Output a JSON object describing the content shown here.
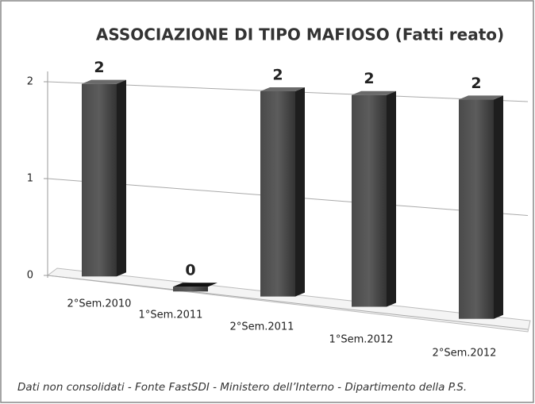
{
  "chart_data": {
    "type": "bar",
    "title": "ASSOCIAZIONE DI TIPO MAFIOSO (Fatti reato)",
    "categories": [
      "2°Sem.2010",
      "1°Sem.2011",
      "2°Sem.2011",
      "1°Sem.2012",
      "2°Sem.2012"
    ],
    "values": [
      2,
      0,
      2,
      2,
      2
    ],
    "color": "#3a3a3a",
    "ylim": [
      0,
      2
    ],
    "yticks": [
      0,
      1,
      2
    ],
    "grid": true,
    "source": "Dati non consolidati - Fonte FastSDI - Ministero dell’Interno - Dipartimento della P.S."
  }
}
